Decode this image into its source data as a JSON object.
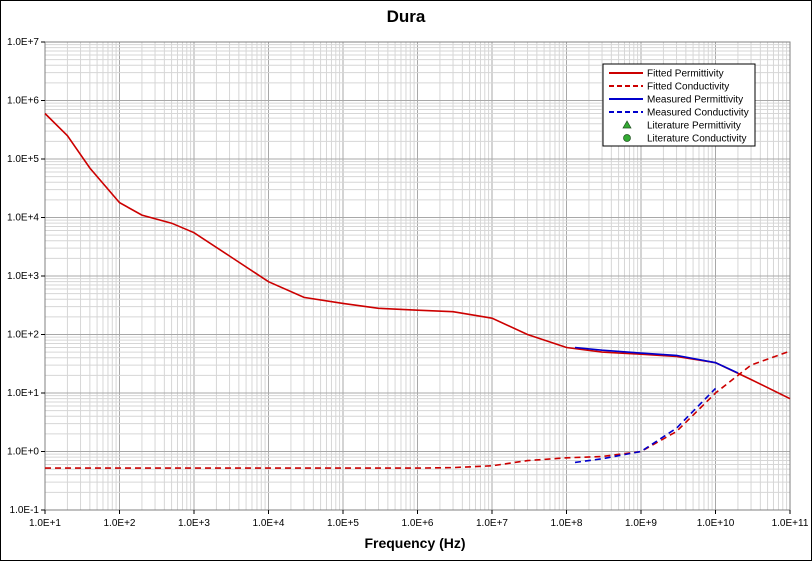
{
  "chart_data": {
    "type": "line",
    "title": "Dura",
    "xlabel": "Frequency (Hz)",
    "ylabel": "",
    "x_scale": "log",
    "y_scale": "log",
    "xlim": [
      10,
      100000000000
    ],
    "ylim": [
      0.1,
      10000000
    ],
    "grid": true,
    "legend_position": "top-right",
    "x_ticks": [
      "1.0E+1",
      "1.0E+2",
      "1.0E+3",
      "1.0E+4",
      "1.0E+5",
      "1.0E+6",
      "1.0E+7",
      "1.0E+8",
      "1.0E+9",
      "1.0E+10",
      "1.0E+11"
    ],
    "y_ticks": [
      "1.0E-1",
      "1.0E+0",
      "1.0E+1",
      "1.0E+2",
      "1.0E+3",
      "1.0E+4",
      "1.0E+5",
      "1.0E+6",
      "1.0E+7"
    ],
    "colors": {
      "fitted": "#cc0000",
      "measured": "#0000cc",
      "lit_perm": "#33aa33",
      "lit_cond": "#33aa33"
    },
    "series": [
      {
        "name": "Fitted Permittivity",
        "style": "solid",
        "color": "#cc0000",
        "x": [
          10,
          20,
          40,
          100,
          200,
          500,
          1000,
          3000,
          10000,
          30000,
          100000,
          300000,
          1000000,
          3000000,
          10000000,
          30000000,
          100000000,
          300000000,
          1000000000,
          3000000000,
          10000000000,
          30000000000,
          100000000000
        ],
        "y": [
          600000,
          250000,
          70000,
          18000,
          11000,
          8000,
          5500,
          2200,
          800,
          430,
          340,
          280,
          260,
          245,
          190,
          100,
          60,
          50,
          46,
          42,
          33,
          17,
          8
        ]
      },
      {
        "name": "Fitted Conductivity",
        "style": "dashed",
        "color": "#cc0000",
        "x": [
          10,
          100,
          1000,
          10000,
          100000,
          1000000,
          3000000,
          10000000,
          30000000,
          100000000,
          300000000,
          1000000000,
          3000000000,
          10000000000,
          30000000000,
          100000000000
        ],
        "y": [
          0.52,
          0.52,
          0.52,
          0.52,
          0.52,
          0.52,
          0.53,
          0.57,
          0.7,
          0.78,
          0.82,
          1.0,
          2.2,
          10,
          30,
          52
        ]
      },
      {
        "name": "Measured Permittivity",
        "style": "solid",
        "color": "#0000cc",
        "x": [
          130000000,
          300000000,
          1000000000,
          3000000000,
          10000000000,
          20000000000
        ],
        "y": [
          60,
          54,
          48,
          44,
          33,
          22
        ]
      },
      {
        "name": "Measured Conductivity",
        "style": "dashed",
        "color": "#0000cc",
        "x": [
          130000000,
          300000000,
          1000000000,
          3000000000,
          10000000000
        ],
        "y": [
          0.65,
          0.75,
          1.0,
          2.5,
          12
        ]
      },
      {
        "name": "Literature Permittivity",
        "marker": "triangle",
        "color": "#33aa33",
        "x": [],
        "y": []
      },
      {
        "name": "Literature Conductivity",
        "marker": "circle",
        "color": "#33aa33",
        "x": [],
        "y": []
      }
    ]
  }
}
